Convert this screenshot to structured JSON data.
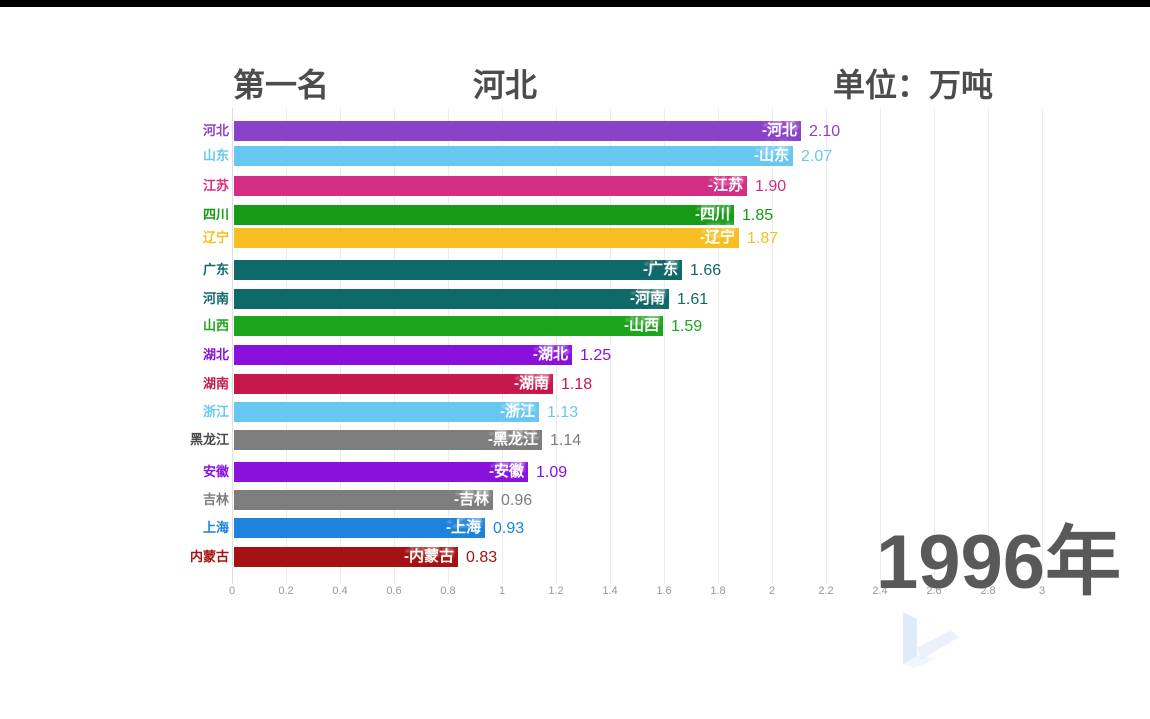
{
  "header": {
    "rank_title": "第一名",
    "rank_value": "河北",
    "unit_label": "单位：万吨"
  },
  "year_label": "1996年",
  "accent_colors": {
    "header_text": "#4c4c4c",
    "year_text": "#595959",
    "tick_text": "#999999",
    "gridline": "#ececec",
    "watermark_blue": "#c9d9f3"
  },
  "chart_data": {
    "type": "bar",
    "orientation": "horizontal",
    "title": "第一名 河北",
    "unit": "万吨",
    "year": "1996年",
    "categories": [
      "河北",
      "山东",
      "江苏",
      "四川",
      "辽宁",
      "广东",
      "河南",
      "山西",
      "湖北",
      "湖南",
      "浙江",
      "黑龙江",
      "安徽",
      "吉林",
      "上海",
      "内蒙古"
    ],
    "values": [
      2.1,
      2.07,
      1.9,
      1.85,
      1.87,
      1.66,
      1.61,
      1.59,
      1.25,
      1.18,
      1.13,
      1.14,
      1.09,
      0.96,
      0.93,
      0.83
    ],
    "value_labels": [
      "2.10",
      "2.07",
      "1.90",
      "1.85",
      "1.87",
      "1.66",
      "1.61",
      "1.59",
      "1.25",
      "1.18",
      "1.13",
      "1.14",
      "1.09",
      "0.96",
      "0.93",
      "0.83"
    ],
    "inner_bar_labels": [
      "-河北",
      "-山东",
      "-江苏",
      "-四川",
      "-辽宁",
      "-广东",
      "-河南",
      "-山西",
      "-湖北",
      "-湖南",
      "-浙江",
      "-黑龙江",
      "-安徽",
      "-吉林",
      "-上海",
      "-内蒙古"
    ],
    "bar_colors": [
      "#8a43c8",
      "#68c7f0",
      "#d42d84",
      "#169b16",
      "#f8be21",
      "#0e6968",
      "#0e6968",
      "#1ca51c",
      "#8a10dc",
      "#c7184c",
      "#68c7f0",
      "#7d7d7d",
      "#8a10dc",
      "#7d7d7d",
      "#1c82dc",
      "#a61212"
    ],
    "category_label_colors": [
      "#8a43c8",
      "#68c7f0",
      "#d42d84",
      "#169b16",
      "#f8be21",
      "#0e6968",
      "#0e6968",
      "#1ca51c",
      "#8a10dc",
      "#c7184c",
      "#68c7f0",
      "#4a4a4a",
      "#8a10dc",
      "#7d7d7d",
      "#1c82dc",
      "#a61212"
    ],
    "xlim": [
      0,
      3
    ],
    "x_ticks": [
      "0",
      "0.2",
      "0.4",
      "0.6",
      "0.8",
      "1",
      "1.2",
      "1.4",
      "1.6",
      "1.8",
      "2",
      "2.2",
      "2.4",
      "2.6",
      "2.8",
      "3"
    ],
    "grid": true,
    "legend": false,
    "value_label_position": "right-of-bar"
  }
}
